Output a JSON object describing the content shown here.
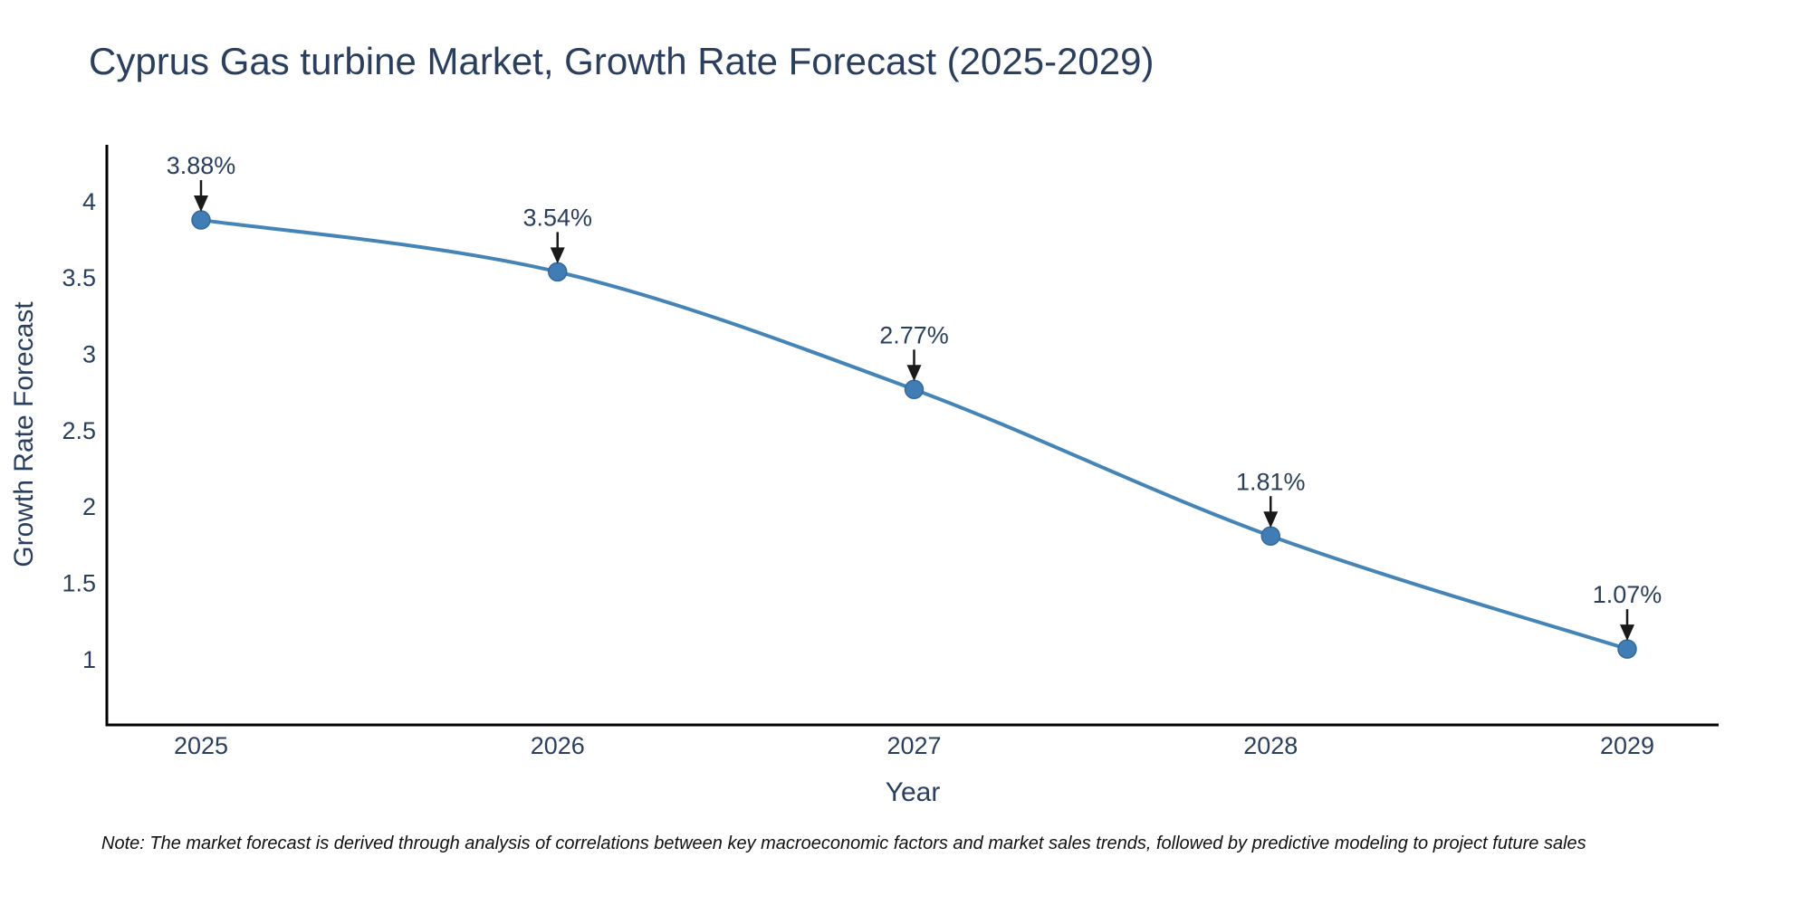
{
  "title": "Cyprus Gas turbine Market, Growth Rate Forecast (2025-2029)",
  "note": "Note: The market forecast is derived through analysis of correlations between key macroeconomic factors and market sales trends, followed by predictive modeling to project future sales",
  "chart_data": {
    "type": "line",
    "title": "Cyprus Gas turbine Market, Growth Rate Forecast (2025-2029)",
    "xlabel": "Year",
    "ylabel": "Growth Rate Forecast",
    "categories": [
      2025,
      2026,
      2027,
      2028,
      2029
    ],
    "series": [
      {
        "name": "Growth Rate Forecast",
        "values": [
          3.88,
          3.54,
          2.77,
          1.81,
          1.07
        ]
      }
    ],
    "point_labels": [
      "3.88%",
      "3.54%",
      "2.77%",
      "1.81%",
      "1.07%"
    ],
    "yticks": [
      4,
      3.5,
      3,
      2.5,
      2,
      1.5,
      1
    ],
    "ylim": [
      0.5726,
      4.3723
    ],
    "xlim": [
      2024.7359,
      2029.2565
    ],
    "grid": false,
    "legend": "none",
    "line_shape": "spline",
    "annotation_style": "arrow-down",
    "colors": {
      "line": "#4584b6",
      "marker_fill": "#3f7db4",
      "marker_stroke": "#35699e",
      "axis_line": "#000000",
      "tick_text": "#2a3f5f",
      "title_text": "#2a3f5f",
      "annotation_text": "#2a3f5f",
      "arrow": "#1a1a1a",
      "background": "#ffffff"
    }
  }
}
